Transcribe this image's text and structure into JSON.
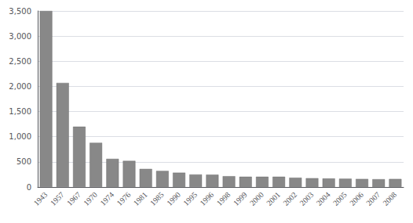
{
  "chart_data": {
    "type": "bar",
    "categories": [
      "1943",
      "1957",
      "1967",
      "1970",
      "1974",
      "1976",
      "1981",
      "1985",
      "1990",
      "1995",
      "1996",
      "1998",
      "1999",
      "2000",
      "2001",
      "2002",
      "2003",
      "2004",
      "2005",
      "2006",
      "2007",
      "2008"
    ],
    "values": [
      3500,
      2070,
      1200,
      880,
      560,
      520,
      360,
      320,
      285,
      250,
      245,
      215,
      205,
      205,
      205,
      185,
      175,
      170,
      165,
      160,
      155,
      160
    ],
    "color": "#888888",
    "ylim": [
      0,
      3500
    ],
    "yticks": [
      0,
      500,
      1000,
      1500,
      2000,
      2500,
      3000,
      3500
    ],
    "grid": true
  }
}
